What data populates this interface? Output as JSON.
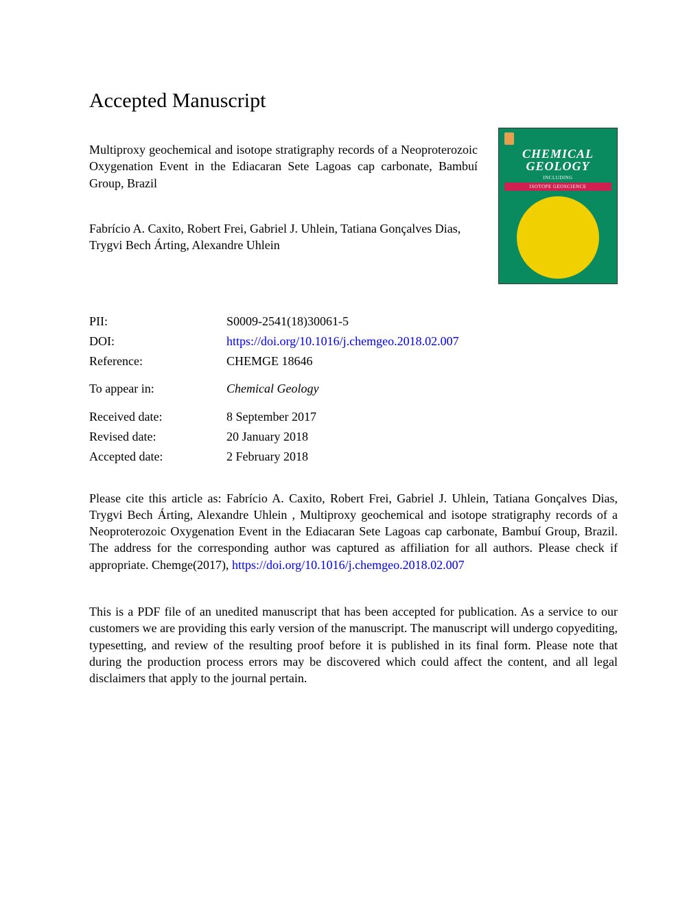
{
  "header": "Accepted Manuscript",
  "article": {
    "title": "Multiproxy geochemical and isotope stratigraphy records of a Neoproterozoic Oxygenation Event in the Ediacaran Sete Lagoas cap carbonate, Bambuí Group, Brazil",
    "authors": "Fabrício A. Caxito, Robert Frei, Gabriel J. Uhlein, Tatiana Gonçalves Dias, Trygvi Bech Árting, Alexandre Uhlein"
  },
  "cover": {
    "title_line1": "CHEMICAL",
    "title_line2": "GEOLOGY",
    "subtitle": "INCLUDING",
    "section": "ISOTOPE GEOSCIENCE",
    "colors": {
      "background": "#0a8a5f",
      "circle": "#f0d000",
      "banner": "#d02050",
      "text": "#ffffff"
    }
  },
  "meta": {
    "pii_label": "PII:",
    "pii": "S0009-2541(18)30061-5",
    "doi_label": "DOI:",
    "doi": "https://doi.org/10.1016/j.chemgeo.2018.02.007",
    "ref_label": "Reference:",
    "ref": "CHEMGE 18646",
    "appear_label": "To appear in:",
    "appear": "Chemical Geology",
    "received_label": "Received date:",
    "received": "8 September 2017",
    "revised_label": "Revised date:",
    "revised": "20 January 2018",
    "accepted_label": "Accepted date:",
    "accepted": "2 February 2018"
  },
  "citation": {
    "text": "Please cite this article as: Fabrício A. Caxito, Robert Frei, Gabriel J. Uhlein, Tatiana Gonçalves Dias, Trygvi Bech Árting, Alexandre Uhlein , Multiproxy geochemical and isotope stratigraphy records of a Neoproterozoic Oxygenation Event in the Ediacaran Sete Lagoas cap carbonate, Bambuí Group, Brazil. The address for the corresponding author was captured as affiliation for all authors. Please check if appropriate. Chemge(2017), ",
    "link": "https://doi.org/10.1016/j.chemgeo.2018.02.007"
  },
  "disclaimer": "This is a PDF file of an unedited manuscript that has been accepted for publication. As a service to our customers we are providing this early version of the manuscript. The manuscript will undergo copyediting, typesetting, and review of the resulting proof before it is published in its final form. Please note that during the production process errors may be discovered which could affect the content, and all legal disclaimers that apply to the journal pertain."
}
